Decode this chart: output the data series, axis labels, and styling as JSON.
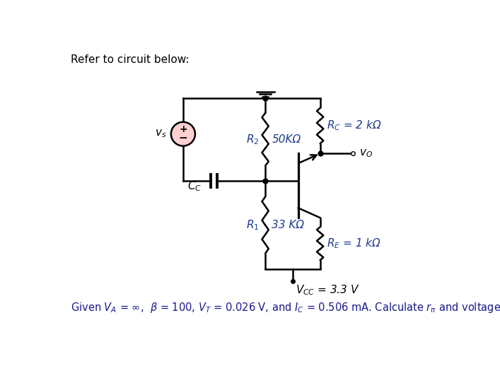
{
  "title_text": "Refer to circuit below:",
  "bottom_text": "Given V_A = ∞,  β = 100, V_T = 0.026 V, and I_C = 0.506 mA. Calculate r_π and voltage gain A_v of the circuit.",
  "vcc_text": "$V_{CC}$ = 3.3 V",
  "r1_italic": "$R_1$",
  "r1_val": "33 KΩ",
  "r2_italic": "$R_2$",
  "r2_val": "50KΩ",
  "re_text": "$R_E$ = 1 kΩ",
  "rc_text": "$R_C$ = 2 kΩ",
  "cc_text": "$C_C$",
  "vs_text": "$v_s$",
  "vo_text": "$v_O$",
  "bg_color": "#ffffff",
  "line_color": "#000000",
  "text_color_blue": "#1a1a8c",
  "label_color": "#1a3a8c"
}
